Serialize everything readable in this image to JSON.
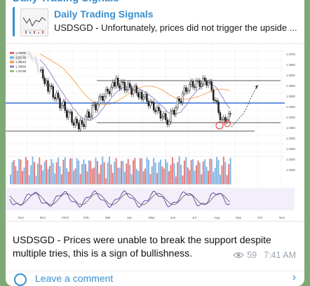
{
  "channel": {
    "title": "Daily Trading Signals"
  },
  "reply": {
    "name": "Daily Trading Signals",
    "text": "USDSGD - Unfortunately, prices did not trigger the upside ..."
  },
  "chart": {
    "legend_lines": [
      "1.34988",
      "1.35132",
      "1.35010",
      "1.34894",
      "1.34780"
    ],
    "price_levels": [
      "1.3700",
      "1.3650",
      "1.3600",
      "1.3550",
      "1.3500",
      "1.3450",
      "1.3400",
      "1.3350",
      "1.3300",
      "1.3250",
      "1.3200",
      "1.3150"
    ],
    "months": [
      "Nov",
      "Dec",
      "2023",
      "Feb",
      "Mar",
      "Apr",
      "May",
      "Jun",
      "Jul",
      "Aug",
      "Sep",
      "Oct",
      "Nov"
    ]
  },
  "message": {
    "text": "USDSGD - Prices were unable to break the support despite multiple tries, this is a sign of bullishness.",
    "views": "59",
    "time": "7:41 AM"
  },
  "comments": {
    "label": "Leave a comment"
  },
  "colors": {
    "accent": "#3a8fd0",
    "background": "#7ea874",
    "candle_up": "#1e1e1e",
    "volume_up": "#e06666",
    "volume_down": "#6fa8dc",
    "ma_orange": "#f6a04d",
    "ma_purple": "#8e7cc3"
  }
}
